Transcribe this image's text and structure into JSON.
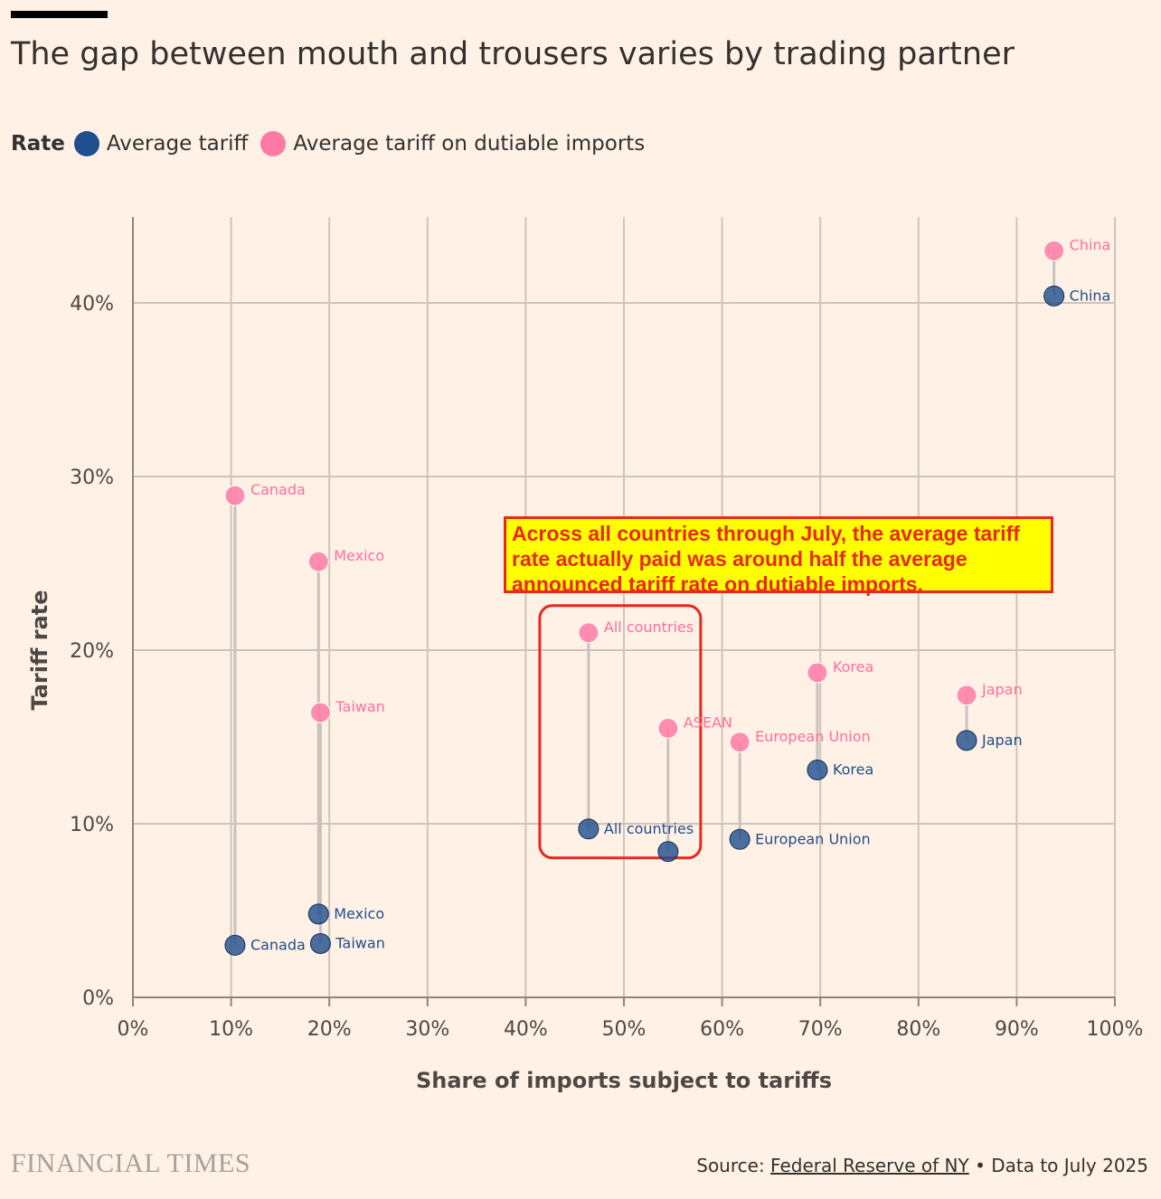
{
  "title": "The gap between mouth and trousers varies by trading partner",
  "legend": {
    "title": "Rate",
    "items": [
      {
        "label": "Average tariff",
        "color": "#1f4e8c"
      },
      {
        "label": "Average tariff on dutiable imports",
        "color": "#ff7ba6"
      }
    ]
  },
  "annotation": "Across all countries through July, the average tariff rate actually paid was around half the average announced tariff rate on dutiable imports.",
  "footer": {
    "logo": "FINANCIAL TIMES",
    "source_prefix": "Source: ",
    "source_link": "Federal Reserve of NY",
    "source_suffix": " • Data to July 2025"
  },
  "chart_data": {
    "type": "scatter",
    "xlabel": "Share of imports subject to tariffs",
    "ylabel": "Tariff rate",
    "xlim": [
      0,
      100
    ],
    "ylim": [
      0,
      45
    ],
    "xticks": [
      0,
      10,
      20,
      30,
      40,
      50,
      60,
      70,
      80,
      90,
      100
    ],
    "xtick_labels": [
      "0%",
      "10%",
      "20%",
      "30%",
      "40%",
      "50%",
      "60%",
      "70%",
      "80%",
      "90%",
      "100%"
    ],
    "yticks": [
      0,
      10,
      20,
      30,
      40
    ],
    "ytick_labels": [
      "0%",
      "10%",
      "20%",
      "30%",
      "40%"
    ],
    "grid": true,
    "highlight": "All countries",
    "series": [
      {
        "name": "Average tariff",
        "color": "#1f4e8c"
      },
      {
        "name": "Average tariff on dutiable imports",
        "color": "#ff7ba6"
      }
    ],
    "points": [
      {
        "name": "Canada",
        "x": 10.4,
        "avg": 3.0,
        "dutiable": 28.9,
        "avg_label": "Canada",
        "dutiable_label": "Canada"
      },
      {
        "name": "Mexico",
        "x": 18.9,
        "avg": 4.8,
        "dutiable": 25.1,
        "avg_label": "Mexico",
        "dutiable_label": "Mexico"
      },
      {
        "name": "Taiwan",
        "x": 19.1,
        "avg": 3.1,
        "dutiable": 16.4,
        "avg_label": "Taiwan",
        "dutiable_label": "Taiwan"
      },
      {
        "name": "All countries",
        "x": 46.4,
        "avg": 9.7,
        "dutiable": 21.0,
        "avg_label": "All countries",
        "dutiable_label": "All countries"
      },
      {
        "name": "ASEAN",
        "x": 54.5,
        "avg": 8.4,
        "dutiable": 15.5,
        "avg_label": "",
        "dutiable_label": "ASEAN"
      },
      {
        "name": "European Union",
        "x": 61.8,
        "avg": 9.1,
        "dutiable": 14.7,
        "avg_label": "European Union",
        "dutiable_label": "European Union"
      },
      {
        "name": "Korea",
        "x": 69.7,
        "avg": 13.1,
        "dutiable": 18.7,
        "avg_label": "Korea",
        "dutiable_label": "Korea"
      },
      {
        "name": "Japan",
        "x": 84.9,
        "avg": 14.8,
        "dutiable": 17.4,
        "avg_label": "Japan",
        "dutiable_label": "Japan"
      },
      {
        "name": "China",
        "x": 93.8,
        "avg": 40.4,
        "dutiable": 43.0,
        "avg_label": "China",
        "dutiable_label": "China"
      }
    ]
  }
}
